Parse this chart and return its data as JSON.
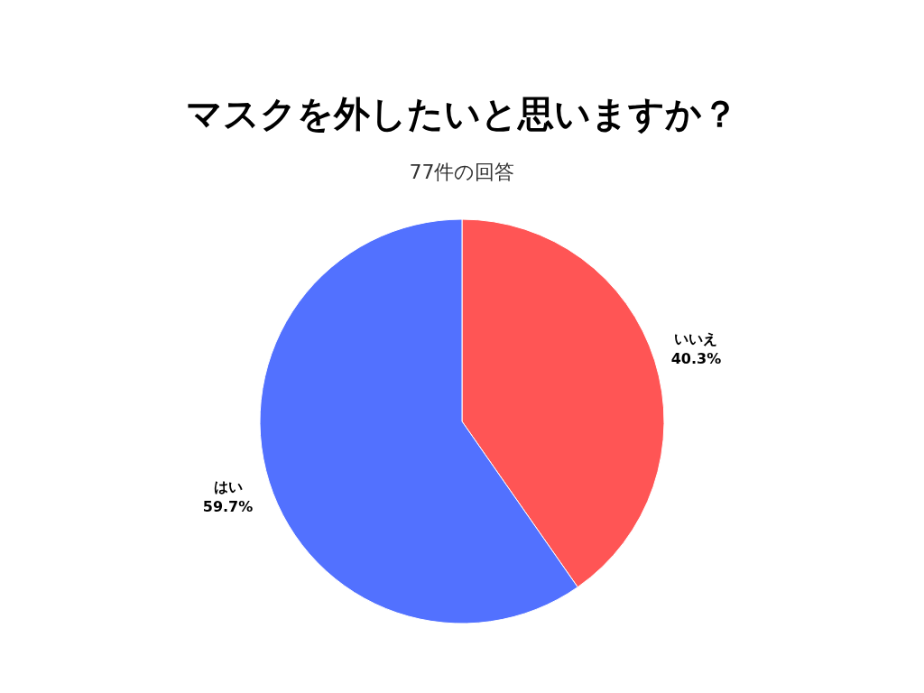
{
  "chart_data": {
    "type": "pie",
    "title": "マスクを外したいと思いますか？",
    "subtitle": "77件の回答",
    "categories": [
      "いいえ",
      "はい"
    ],
    "values": [
      40.3,
      59.7
    ],
    "colors": [
      "#ff5555",
      "#5271ff"
    ],
    "value_labels": [
      "40.3%",
      "59.7%"
    ],
    "legend": false
  }
}
